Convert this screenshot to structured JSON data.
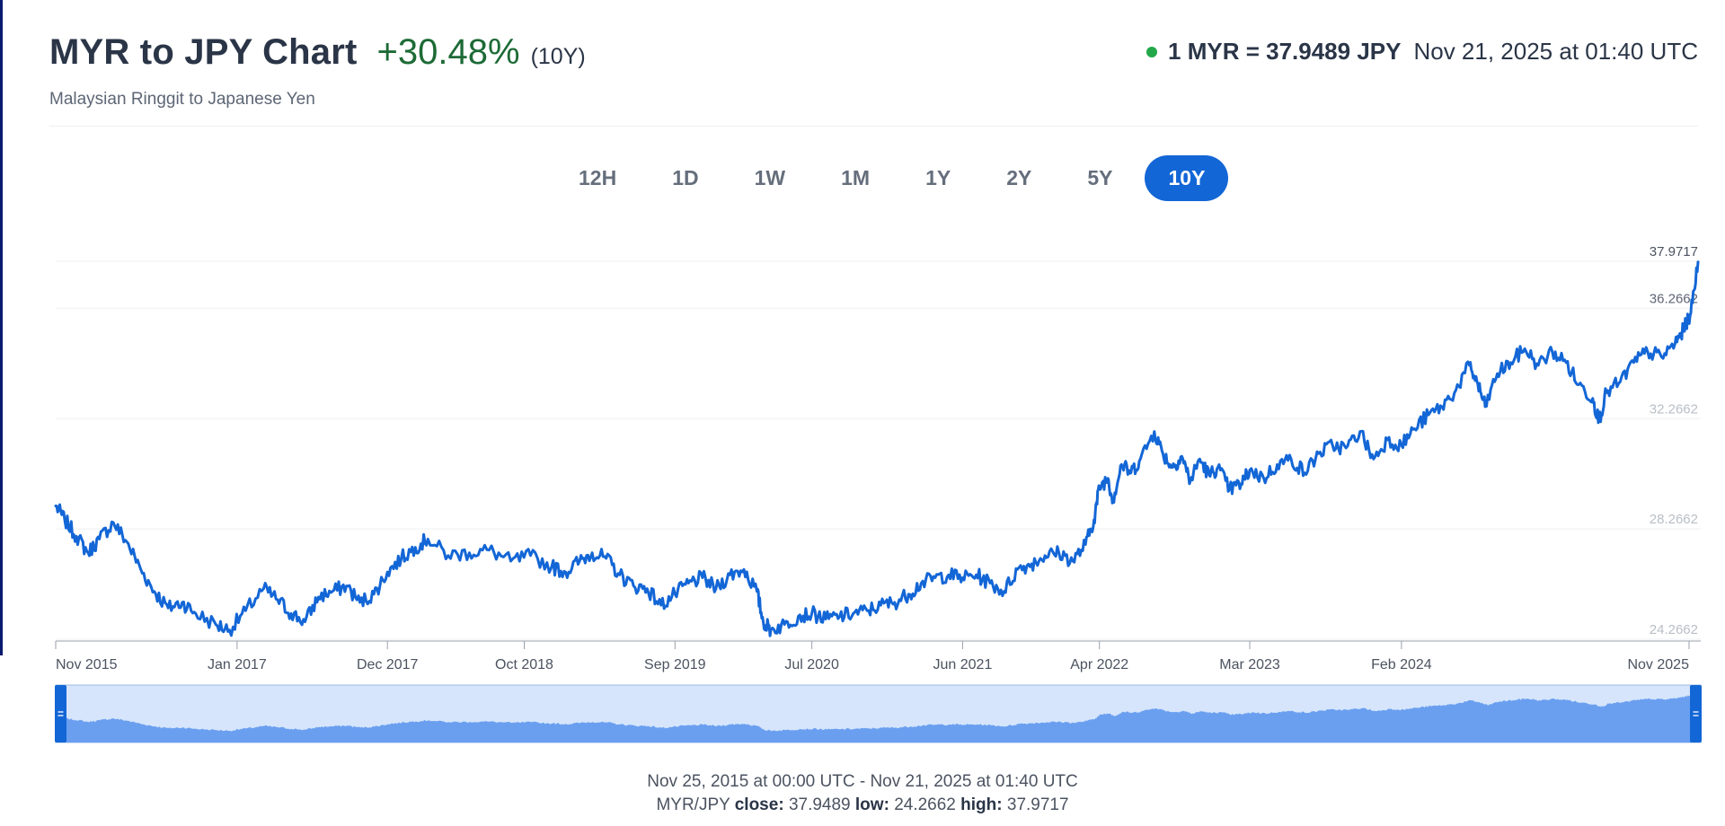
{
  "header": {
    "title": "MYR to JPY Chart",
    "change": "+30.48%",
    "period": "(10Y)",
    "subtitle": "Malaysian Ringgit to Japanese Yen",
    "rate": "1 MYR = 37.9489 JPY",
    "timestamp": "Nov 21, 2025 at 01:40 UTC"
  },
  "ranges": [
    "12H",
    "1D",
    "1W",
    "1M",
    "1Y",
    "2Y",
    "5Y",
    "10Y"
  ],
  "active_range": "10Y",
  "footer": {
    "date_range": "Nov 25, 2015 at 00:00 UTC - Nov 21, 2025 at 01:40 UTC",
    "pair": "MYR/JPY",
    "close_label": "close:",
    "close_value": "37.9489",
    "low_label": "low:",
    "low_value": "24.2662",
    "high_label": "high:",
    "high_value": "37.9717"
  },
  "colors": {
    "line": "#1366d6",
    "navigator_fill": "#6a9ff0",
    "navigator_bg": "#d6e5fb",
    "handle": "#1366d6",
    "change_positive": "#1d6a36",
    "live_dot": "#22a84a"
  },
  "chart_data": {
    "type": "line",
    "xlabel": "",
    "ylabel": "",
    "x_tick_labels": [
      "Nov 2015",
      "Jan 2017",
      "Dec 2017",
      "Oct 2018",
      "Sep 2019",
      "Jul 2020",
      "Jun 2021",
      "Apr 2022",
      "Mar 2023",
      "Feb 2024",
      "Nov 2025"
    ],
    "x_tick_dates": [
      "2015-11-25",
      "2017-01-01",
      "2017-12-01",
      "2018-10-01",
      "2019-09-01",
      "2020-07-01",
      "2021-06-01",
      "2022-04-01",
      "2023-03-01",
      "2024-02-01",
      "2025-11-01"
    ],
    "y_tick_labels": [
      "24.2662",
      "28.2662",
      "32.2662",
      "36.2662",
      "37.9717"
    ],
    "y_ticks": [
      24.2662,
      28.2662,
      32.2662,
      36.2662,
      37.9717
    ],
    "ylim": [
      24.2662,
      37.9717
    ],
    "xlim": [
      "2015-11-25",
      "2025-11-21"
    ],
    "grid": true,
    "navigator": true,
    "series": [
      {
        "x": [
          "2015-11-25",
          "2015-12-15",
          "2016-01-10",
          "2016-02-05",
          "2016-03-01",
          "2016-04-01",
          "2016-05-01",
          "2016-06-01",
          "2016-07-01",
          "2016-08-01",
          "2016-09-01",
          "2016-10-01",
          "2016-11-15",
          "2016-12-15",
          "2017-01-20",
          "2017-03-01",
          "2017-04-01",
          "2017-05-01",
          "2017-06-01",
          "2017-07-01",
          "2017-08-01",
          "2017-09-01",
          "2017-10-01",
          "2017-11-01",
          "2017-12-01",
          "2018-01-01",
          "2018-02-01",
          "2018-03-01",
          "2018-04-15",
          "2018-06-01",
          "2018-07-15",
          "2018-09-01",
          "2018-10-15",
          "2018-12-01",
          "2019-01-01",
          "2019-02-01",
          "2019-03-01",
          "2019-04-01",
          "2019-05-01",
          "2019-06-01",
          "2019-07-01",
          "2019-08-01",
          "2019-09-01",
          "2019-10-01",
          "2019-11-01",
          "2019-12-01",
          "2020-01-01",
          "2020-02-01",
          "2020-03-01",
          "2020-03-15",
          "2020-04-01",
          "2020-05-01",
          "2020-06-01",
          "2020-07-01",
          "2020-08-01",
          "2020-09-01",
          "2020-10-01",
          "2020-11-01",
          "2020-12-01",
          "2021-01-01",
          "2021-02-01",
          "2021-03-01",
          "2021-04-01",
          "2021-05-01",
          "2021-06-01",
          "2021-07-01",
          "2021-08-01",
          "2021-09-01",
          "2021-10-01",
          "2021-11-01",
          "2021-12-01",
          "2022-01-01",
          "2022-02-01",
          "2022-03-01",
          "2022-03-20",
          "2022-04-01",
          "2022-04-20",
          "2022-05-01",
          "2022-05-20",
          "2022-06-10",
          "2022-07-01",
          "2022-08-01",
          "2022-08-20",
          "2022-09-10",
          "2022-10-01",
          "2022-10-20",
          "2022-11-10",
          "2022-12-01",
          "2022-12-20",
          "2023-01-15",
          "2023-02-10",
          "2023-03-01",
          "2023-04-01",
          "2023-05-01",
          "2023-06-01",
          "2023-07-01",
          "2023-08-01",
          "2023-09-01",
          "2023-10-01",
          "2023-11-01",
          "2023-12-01",
          "2024-01-01",
          "2024-02-01",
          "2024-03-01",
          "2024-04-01",
          "2024-05-01",
          "2024-06-01",
          "2024-07-01",
          "2024-07-20",
          "2024-08-05",
          "2024-09-01",
          "2024-10-01",
          "2024-11-01",
          "2024-12-01",
          "2025-01-01",
          "2025-02-01",
          "2025-03-01",
          "2025-04-01",
          "2025-04-15",
          "2025-05-01",
          "2025-06-01",
          "2025-07-01",
          "2025-08-01",
          "2025-09-01",
          "2025-10-01",
          "2025-10-20",
          "2025-11-05",
          "2025-11-21"
        ],
        "values": [
          29.1,
          28.6,
          28.0,
          27.4,
          27.9,
          28.5,
          27.8,
          26.8,
          26.0,
          25.4,
          25.6,
          25.2,
          24.8,
          24.6,
          25.3,
          26.1,
          25.7,
          25.2,
          24.9,
          25.8,
          26.0,
          26.2,
          25.6,
          25.9,
          26.7,
          27.2,
          27.6,
          27.9,
          27.3,
          27.4,
          27.5,
          27.1,
          27.3,
          26.9,
          26.7,
          27.1,
          27.4,
          27.2,
          26.6,
          26.2,
          26.1,
          25.5,
          25.9,
          26.3,
          26.5,
          26.1,
          26.6,
          26.8,
          26.0,
          24.9,
          24.6,
          24.8,
          25.1,
          25.2,
          25.0,
          25.1,
          25.2,
          25.3,
          25.5,
          25.6,
          25.9,
          26.3,
          26.5,
          26.6,
          26.5,
          26.6,
          26.3,
          26.0,
          26.8,
          27.0,
          27.3,
          27.4,
          27.1,
          27.7,
          28.6,
          29.8,
          30.1,
          29.3,
          30.6,
          30.3,
          30.8,
          31.8,
          31.0,
          30.5,
          30.9,
          30.0,
          30.8,
          30.2,
          30.5,
          29.7,
          29.9,
          30.4,
          30.1,
          30.6,
          30.8,
          30.3,
          31.0,
          31.3,
          31.2,
          31.8,
          30.8,
          31.5,
          31.3,
          31.9,
          32.4,
          32.7,
          33.3,
          34.2,
          33.5,
          32.7,
          33.9,
          34.3,
          34.8,
          34.2,
          34.7,
          34.3,
          33.5,
          33.0,
          32.2,
          33.2,
          33.6,
          34.3,
          34.7,
          34.5,
          35.0,
          35.5,
          36.1,
          37.95
        ]
      }
    ]
  }
}
